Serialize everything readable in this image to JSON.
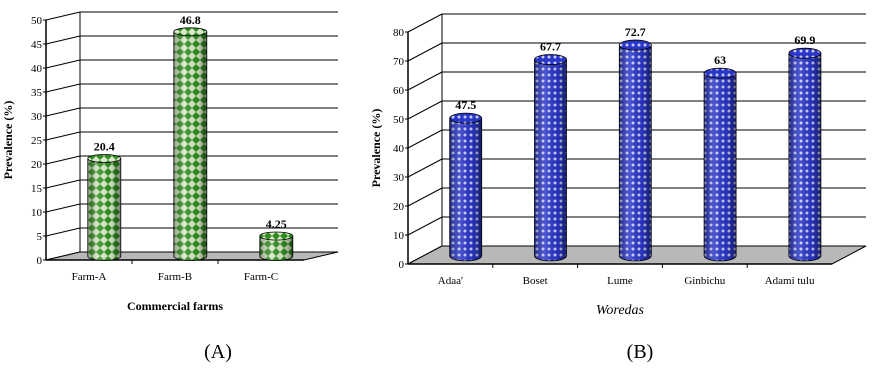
{
  "chart_data": [
    {
      "type": "bar",
      "style": "3d-cylinder",
      "panel_label": "(A)",
      "categories": [
        "Farm-A",
        "Farm-B",
        "Farm-C"
      ],
      "values": [
        20.4,
        46.8,
        4.25
      ],
      "value_labels": [
        "20.4",
        "46.8",
        "4.25"
      ],
      "xlabel": "Commercial farms",
      "ylabel": "Prevalence (%)",
      "ylim": [
        0,
        50
      ],
      "yticks": [
        "0",
        "5",
        "10",
        "15",
        "20",
        "25",
        "30",
        "35",
        "40",
        "45",
        "50"
      ],
      "grid": true,
      "colors": {
        "bar": "#2f8f1e",
        "pattern": "#d8e8c8",
        "floor": "#b8b8b8"
      }
    },
    {
      "type": "bar",
      "style": "3d-cylinder",
      "panel_label": "(B)",
      "categories": [
        "Adaa'",
        "Boset",
        "Lume",
        "Ginbichu",
        "Adami tulu"
      ],
      "values": [
        47.5,
        67.7,
        72.7,
        63,
        69.9
      ],
      "value_labels": [
        "47.5",
        "67.7",
        "72.7",
        "63",
        "69.9"
      ],
      "xlabel": "Woredas",
      "ylabel": "Prevalence (%)",
      "ylim": [
        0,
        80
      ],
      "yticks": [
        "0",
        "10",
        "20",
        "30",
        "40",
        "50",
        "60",
        "70",
        "80"
      ],
      "grid": true,
      "colors": {
        "bar": "#2a36c8",
        "pattern": "#c8ccf2",
        "floor": "#b8b8b8"
      }
    }
  ]
}
